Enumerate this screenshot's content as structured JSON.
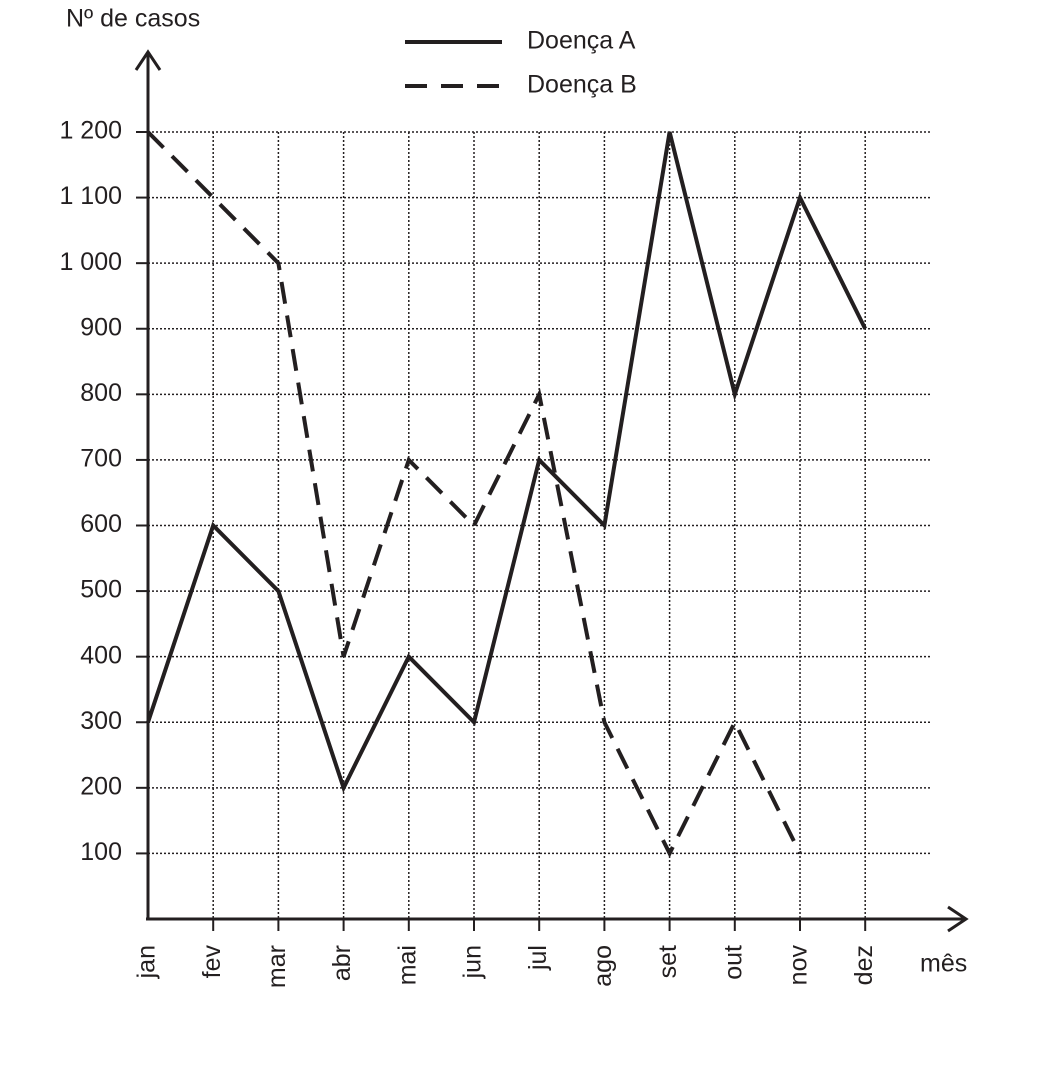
{
  "chart_data": {
    "type": "line",
    "y_label": "Nº de casos",
    "x_label": "mês",
    "categories": [
      "jan",
      "fev",
      "mar",
      "abr",
      "mai",
      "jun",
      "jul",
      "ago",
      "set",
      "out",
      "nov",
      "dez"
    ],
    "series": [
      {
        "name": "Doença A",
        "color": "#231f20",
        "dash": "solid",
        "values": [
          300,
          600,
          500,
          200,
          400,
          300,
          700,
          600,
          1200,
          800,
          1100,
          900
        ]
      },
      {
        "name": "Doença B",
        "color": "#231f20",
        "dash": "dashed",
        "values": [
          1200,
          1100,
          1000,
          400,
          700,
          600,
          800,
          300,
          100,
          300,
          100,
          null
        ]
      }
    ],
    "ylim": [
      0,
      1200
    ],
    "yticks": [
      100,
      200,
      300,
      400,
      500,
      600,
      700,
      800,
      900,
      {
        "value": 1000,
        "label": "1 000"
      },
      {
        "value": 1100,
        "label": "1 100"
      },
      {
        "value": 1200,
        "label": "1 200"
      }
    ],
    "grid": true
  }
}
